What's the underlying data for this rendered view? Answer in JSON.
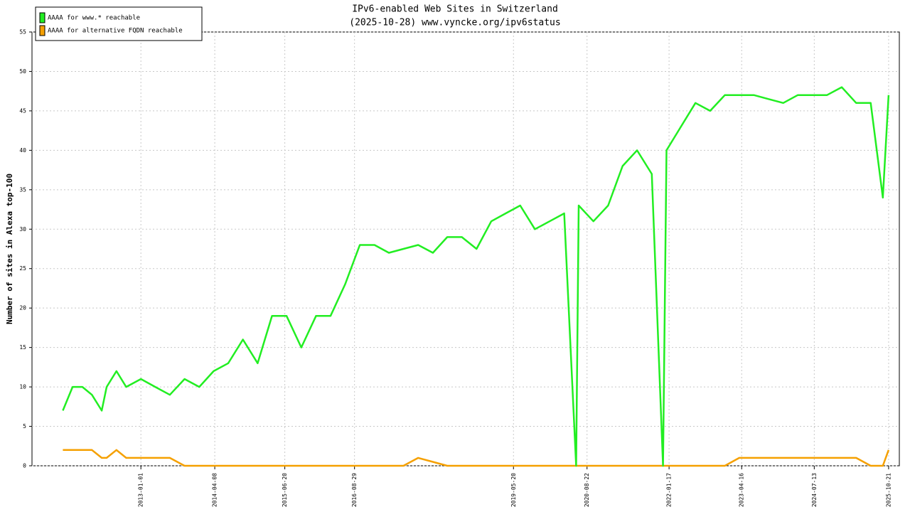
{
  "chart_data": {
    "type": "line",
    "title": "IPv6-enabled Web Sites in Switzerland",
    "subtitle": "(2025-10-28) www.vyncke.org/ipv6status",
    "y_label": "Number of sites in Alexa top-100",
    "x": [
      "2011-09-01",
      "2011-11-01",
      "2012-01-01",
      "2012-03-01",
      "2012-05-01",
      "2012-06-01",
      "2012-08-01",
      "2012-10-01",
      "2013-01-01",
      "2013-04-01",
      "2013-07-01",
      "2013-10-01",
      "2014-01-01",
      "2014-04-01",
      "2014-07-01",
      "2014-10-01",
      "2015-01-01",
      "2015-04-01",
      "2015-07-01",
      "2015-10-01",
      "2016-01-01",
      "2016-04-01",
      "2016-07-01",
      "2016-10-01",
      "2017-01-01",
      "2017-04-01",
      "2017-07-01",
      "2017-10-01",
      "2018-01-01",
      "2018-04-01",
      "2018-07-01",
      "2018-10-01",
      "2019-01-01",
      "2019-04-01",
      "2019-07-01",
      "2019-10-01",
      "2020-01-01",
      "2020-04-01",
      "2020-06-15",
      "2020-07-01",
      "2020-10-01",
      "2021-01-01",
      "2021-04-01",
      "2021-07-01",
      "2021-10-01",
      "2021-12-10",
      "2022-01-01",
      "2022-04-01",
      "2022-07-01",
      "2022-10-01",
      "2023-01-01",
      "2023-04-01",
      "2023-07-01",
      "2023-10-01",
      "2024-01-01",
      "2024-04-01",
      "2024-07-01",
      "2024-10-01",
      "2025-01-01",
      "2025-04-01",
      "2025-07-01",
      "2025-09-15",
      "2025-10-21"
    ],
    "series": [
      {
        "name": "AAAA for www.* reachable",
        "color": "#22ee22",
        "values": [
          7,
          10,
          10,
          9,
          7,
          10,
          12,
          10,
          11,
          10,
          9,
          11,
          10,
          12,
          13,
          16,
          13,
          19,
          19,
          15,
          19,
          19,
          23,
          28,
          28,
          27,
          27.5,
          28,
          27,
          29,
          29,
          27.5,
          31,
          32,
          33,
          30,
          31,
          32,
          0,
          33,
          31,
          33,
          38,
          40,
          37,
          0,
          40,
          43,
          46,
          45,
          47,
          47,
          47,
          46.5,
          46,
          47,
          47,
          47,
          48,
          46,
          46,
          34,
          47
        ]
      },
      {
        "name": "AAAA for alternative FQDN reachable",
        "color": "#f5a000",
        "values": [
          2,
          2,
          2,
          2,
          1,
          1,
          2,
          1,
          1,
          1,
          1,
          0,
          0,
          0,
          0,
          0,
          0,
          0,
          0,
          0,
          0,
          0,
          0,
          0,
          0,
          0,
          0,
          1,
          0.5,
          0,
          0,
          0,
          0,
          0,
          0,
          0,
          0,
          0,
          0,
          0,
          0,
          0,
          0,
          0,
          0,
          0,
          0,
          0,
          0,
          0,
          0,
          1,
          1,
          1,
          1,
          1,
          1,
          1,
          1,
          1,
          0,
          0,
          2
        ]
      }
    ],
    "xlim": [
      "2011-02-20",
      "2025-12-27"
    ],
    "xticks": [
      "2013-01-01",
      "2014-04-08",
      "2015-06-20",
      "2016-08-29",
      "2019-05-20",
      "2020-08-22",
      "2022-01-17",
      "2023-04-16",
      "2024-07-13",
      "2025-10-21"
    ],
    "ylim": [
      0,
      55
    ],
    "yticks": [
      0,
      5,
      10,
      15,
      20,
      25,
      30,
      35,
      40,
      45,
      50,
      55
    ],
    "grid": true,
    "legend": "upper left"
  }
}
